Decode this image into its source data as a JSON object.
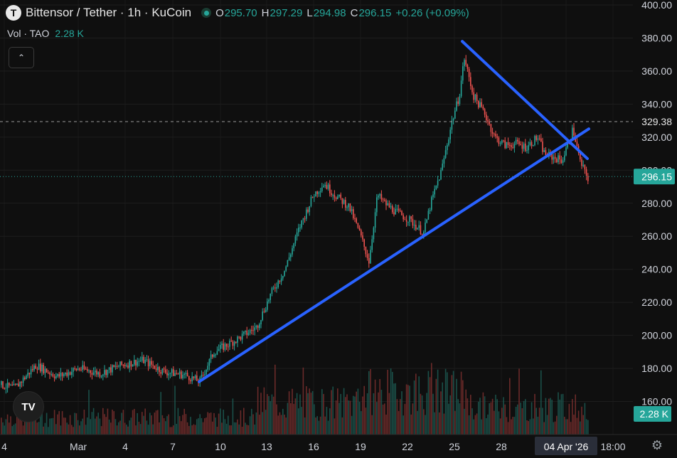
{
  "header": {
    "symbol_logo": "T",
    "title": "Bittensor / Tether · 1h · KuCoin",
    "open_label": "O",
    "open": "295.70",
    "high_label": "H",
    "high": "297.29",
    "low_label": "L",
    "low": "294.98",
    "close_label": "C",
    "close": "296.15",
    "change": "+0.26 (+0.09%)"
  },
  "volume_legend": {
    "label": "Vol · TAO",
    "value": "2.28 K"
  },
  "icons": {
    "collapse": "chevron-up-icon",
    "brand": "tradingview-logo-icon",
    "settings": "gear-icon"
  },
  "brand_text": "TV",
  "colors": {
    "up": "#26a69a",
    "down": "#ef5350",
    "trendline": "#2962ff",
    "background": "#0f0f0f"
  },
  "chart_data": {
    "type": "candlestick",
    "ylim": [
      140,
      400
    ],
    "y_ticks": [
      "400.00",
      "380.00",
      "360.00",
      "340.00",
      "320.00",
      "300.00",
      "280.00",
      "260.00",
      "240.00",
      "220.00",
      "200.00",
      "180.00",
      "160.00"
    ],
    "x_tick_labels": [
      "4",
      "Mar",
      "4",
      "7",
      "10",
      "13",
      "16",
      "19",
      "22",
      "25",
      "28",
      "04 Apr '26",
      "18:00"
    ],
    "price_path": [
      [
        0,
        170
      ],
      [
        20,
        168
      ],
      [
        50,
        182
      ],
      [
        80,
        175
      ],
      [
        110,
        180
      ],
      [
        140,
        177
      ],
      [
        170,
        182
      ],
      [
        200,
        185
      ],
      [
        230,
        178
      ],
      [
        260,
        176
      ],
      [
        280,
        172
      ],
      [
        300,
        190
      ],
      [
        330,
        197
      ],
      [
        360,
        205
      ],
      [
        380,
        225
      ],
      [
        400,
        240
      ],
      [
        420,
        265
      ],
      [
        440,
        285
      ],
      [
        455,
        292
      ],
      [
        470,
        285
      ],
      [
        490,
        278
      ],
      [
        505,
        262
      ],
      [
        518,
        245
      ],
      [
        530,
        285
      ],
      [
        540,
        280
      ],
      [
        555,
        275
      ],
      [
        575,
        270
      ],
      [
        595,
        262
      ],
      [
        605,
        280
      ],
      [
        620,
        300
      ],
      [
        635,
        330
      ],
      [
        645,
        345
      ],
      [
        652,
        368
      ],
      [
        665,
        345
      ],
      [
        680,
        335
      ],
      [
        695,
        320
      ],
      [
        710,
        315
      ],
      [
        725,
        316
      ],
      [
        740,
        314
      ],
      [
        755,
        320
      ],
      [
        765,
        310
      ],
      [
        775,
        308
      ],
      [
        790,
        306
      ],
      [
        805,
        325
      ],
      [
        815,
        305
      ],
      [
        826,
        295
      ]
    ],
    "markers": {
      "last_price": "296.15",
      "dashed_level": "329.38",
      "volume_last": "2.28 K"
    },
    "trendlines": [
      {
        "name": "ascending-support",
        "from": [
          "Mar 8",
          172
        ],
        "to": [
          "Apr 5",
          325
        ]
      },
      {
        "name": "descending-resistance",
        "from": [
          "Mar 25",
          378
        ],
        "to": [
          "Apr 4",
          307
        ]
      }
    ]
  }
}
